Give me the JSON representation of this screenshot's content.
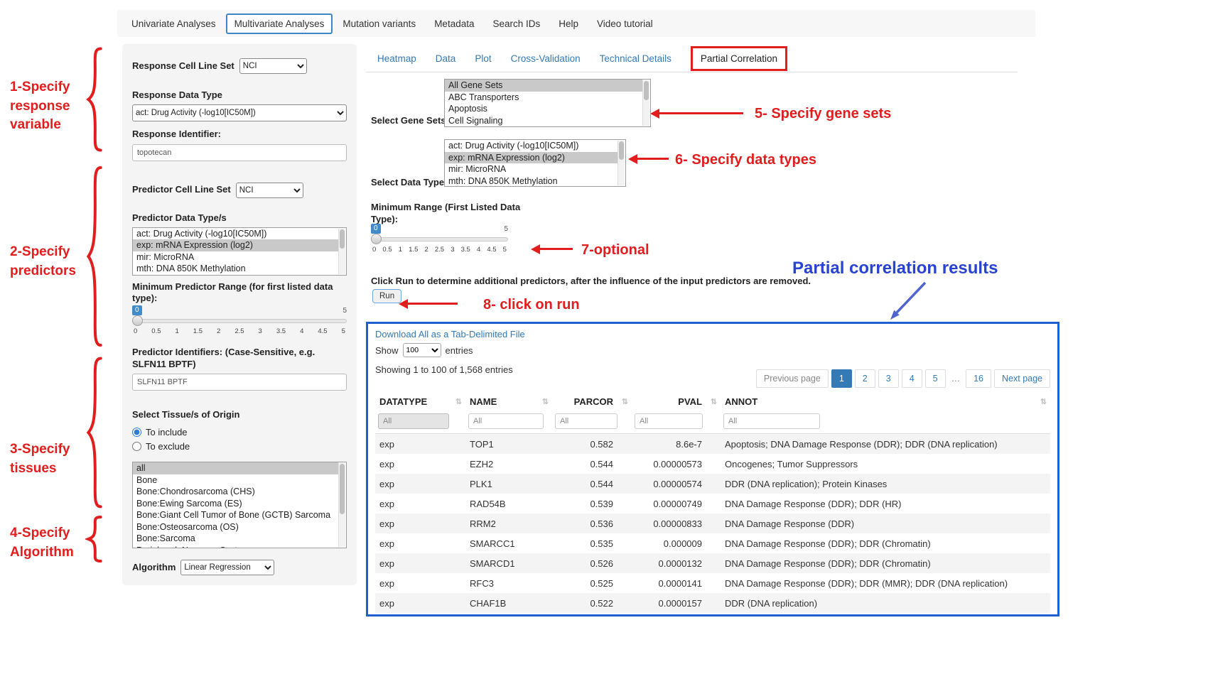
{
  "colors": {
    "link_blue": "#337ab7",
    "annotation_red": "#e21d1d",
    "results_title_blue": "#2743d0",
    "results_panel_border": "#1f5fd0",
    "slider_tooltip_bg": "#428bca",
    "listbox_selected_bg": "#c9c9c9",
    "active_page_bg": "#337ab7"
  },
  "icons": {
    "sort": "⇅"
  },
  "topnav": {
    "items": [
      {
        "label": "Univariate Analyses",
        "active": false
      },
      {
        "label": "Multivariate Analyses",
        "active": true
      },
      {
        "label": "Mutation variants",
        "active": false
      },
      {
        "label": "Metadata",
        "active": false
      },
      {
        "label": "Search IDs",
        "active": false
      },
      {
        "label": "Help",
        "active": false
      },
      {
        "label": "Video tutorial",
        "active": false
      }
    ]
  },
  "sidebar": {
    "response_cell_line_set_label": "Response Cell Line Set",
    "response_cell_line_set_value": "NCI",
    "response_data_type_label": "Response Data Type",
    "response_data_type_value": "act: Drug Activity (-log10[IC50M])",
    "response_identifier_label": "Response Identifier:",
    "response_identifier_value": "topotecan",
    "predictor_cell_line_set_label": "Predictor Cell Line Set",
    "predictor_cell_line_set_value": "NCI",
    "predictor_data_types": {
      "label": "Predictor Data Type/s",
      "options": [
        "act: Drug Activity (-log10[IC50M])",
        "exp: mRNA Expression (log2)",
        "mir: MicroRNA",
        "mth: DNA 850K Methylation"
      ],
      "selected": "exp: mRNA Expression (log2)"
    },
    "min_predictor_range": {
      "label": "Minimum Predictor Range (for first listed data type):",
      "value": "0",
      "max": "5",
      "ticks": [
        "0",
        "0.5",
        "1",
        "1.5",
        "2",
        "2.5",
        "3",
        "3.5",
        "4",
        "4.5",
        "5"
      ]
    },
    "predictor_identifiers_label": "Predictor Identifiers: (Case-Sensitive, e.g. SLFN11 BPTF)",
    "predictor_identifiers_value": "SLFN11 BPTF",
    "tissue": {
      "label": "Select Tissue/s of Origin",
      "include_label": "To include",
      "exclude_label": "To exclude",
      "selected_radio": "include",
      "options": [
        "all",
        "Bone",
        "Bone:Chondrosarcoma (CHS)",
        "Bone:Ewing Sarcoma (ES)",
        "Bone:Giant Cell Tumor of Bone (GCTB) Sarcoma",
        "Bone:Osteosarcoma (OS)",
        "Bone:Sarcoma",
        "Peripheral_Nervous_System"
      ],
      "selected": "all"
    },
    "algorithm_label": "Algorithm",
    "algorithm_value": "Linear Regression"
  },
  "main": {
    "tabs": [
      "Heatmap",
      "Data",
      "Plot",
      "Cross-Validation",
      "Technical Details",
      "Partial Correlation"
    ],
    "active_tab": "Partial Correlation",
    "gene_sets": {
      "label": "Select Gene Sets",
      "options": [
        "All Gene Sets",
        "ABC Transporters",
        "Apoptosis",
        "Cell Signaling"
      ],
      "selected": "All Gene Sets"
    },
    "data_types": {
      "label": "Select Data Types",
      "options": [
        "act: Drug Activity (-log10[IC50M])",
        "exp: mRNA Expression (log2)",
        "mir: MicroRNA",
        "mth: DNA 850K Methylation"
      ],
      "selected": "exp: mRNA Expression (log2)"
    },
    "min_range": {
      "label": "Minimum Range (First Listed Data Type):",
      "value": "0",
      "max": "5",
      "ticks": [
        "0",
        "0.5",
        "1",
        "1.5",
        "2",
        "2.5",
        "3",
        "3.5",
        "4",
        "4.5",
        "5"
      ]
    },
    "run_instruction": "Click Run to determine additional predictors, after the influence of the input predictors are removed.",
    "run_button_label": "Run",
    "results": {
      "download_link": "Download All as a Tab-Delimited File",
      "show_label": "Show",
      "show_value": "100",
      "entries_label": "entries",
      "showing_text": "Showing 1 to 100 of 1,568 entries",
      "pagination": {
        "prev": "Previous page",
        "pages": [
          "1",
          "2",
          "3",
          "4",
          "5"
        ],
        "active": "1",
        "ellipsis": "…",
        "last": "16",
        "next": "Next page"
      },
      "table": {
        "columns": [
          "DATATYPE",
          "NAME",
          "PARCOR",
          "PVAL",
          "ANNOT"
        ],
        "filter_value": "All",
        "rows": [
          [
            "exp",
            "TOP1",
            "0.582",
            "8.6e-7",
            "Apoptosis; DNA Damage Response (DDR); DDR (DNA replication)"
          ],
          [
            "exp",
            "EZH2",
            "0.544",
            "0.00000573",
            "Oncogenes; Tumor Suppressors"
          ],
          [
            "exp",
            "PLK1",
            "0.544",
            "0.00000574",
            "DDR (DNA replication); Protein Kinases"
          ],
          [
            "exp",
            "RAD54B",
            "0.539",
            "0.00000749",
            "DNA Damage Response (DDR); DDR (HR)"
          ],
          [
            "exp",
            "RRM2",
            "0.536",
            "0.00000833",
            "DNA Damage Response (DDR)"
          ],
          [
            "exp",
            "SMARCC1",
            "0.535",
            "0.000009",
            "DNA Damage Response (DDR); DDR (Chromatin)"
          ],
          [
            "exp",
            "SMARCD1",
            "0.526",
            "0.0000132",
            "DNA Damage Response (DDR); DDR (Chromatin)"
          ],
          [
            "exp",
            "RFC3",
            "0.525",
            "0.0000141",
            "DNA Damage Response (DDR); DDR (MMR); DDR (DNA replication)"
          ],
          [
            "exp",
            "CHAF1B",
            "0.522",
            "0.0000157",
            "DDR (DNA replication)"
          ]
        ]
      }
    }
  },
  "annotations": {
    "step1": "1-Specify response variable",
    "step2": "2-Specify predictors",
    "step3": "3-Specify tissues",
    "step4": "4-Specify Algorithm",
    "step5": "5- Specify gene sets",
    "step6": "6- Specify data types",
    "step7": "7-optional",
    "step8": "8- click on run",
    "results_title": "Partial correlation results"
  }
}
